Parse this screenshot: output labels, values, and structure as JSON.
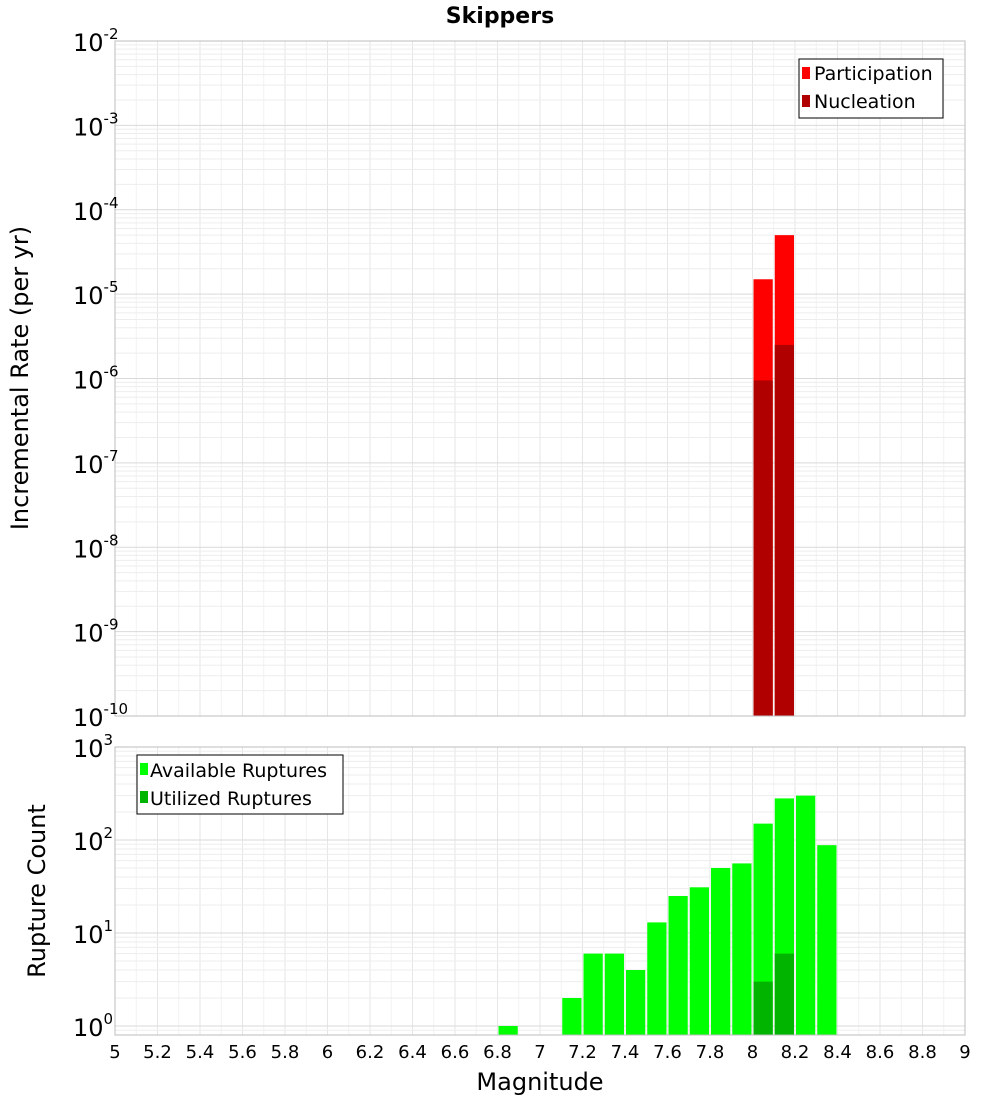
{
  "chart_data": [
    {
      "type": "bar",
      "title": "Skippers",
      "xlabel": "",
      "ylabel": "Incremental Rate (per yr)",
      "yscale": "log",
      "ylim": [
        1e-10,
        0.01
      ],
      "xlim": [
        5,
        9
      ],
      "bin_width": 0.1,
      "grid": true,
      "legend_position": "top-right",
      "x": [
        8.05,
        8.15
      ],
      "series": [
        {
          "name": "Participation",
          "color": "#ff0000",
          "values": [
            1.5e-05,
            5e-05
          ]
        },
        {
          "name": "Nucleation",
          "color": "#b00000",
          "values": [
            9.5e-07,
            2.5e-06
          ]
        }
      ],
      "y_ticks": [
        {
          "base": "10",
          "exp": "-10"
        },
        {
          "base": "10",
          "exp": "-9"
        },
        {
          "base": "10",
          "exp": "-8"
        },
        {
          "base": "10",
          "exp": "-7"
        },
        {
          "base": "10",
          "exp": "-6"
        },
        {
          "base": "10",
          "exp": "-5"
        },
        {
          "base": "10",
          "exp": "-4"
        },
        {
          "base": "10",
          "exp": "-3"
        },
        {
          "base": "10",
          "exp": "-2"
        }
      ]
    },
    {
      "type": "bar",
      "title": "",
      "xlabel": "Magnitude",
      "ylabel": "Rupture Count",
      "yscale": "log",
      "ylim": [
        0.8,
        1000
      ],
      "xlim": [
        5,
        9
      ],
      "bin_width": 0.1,
      "grid": true,
      "legend_position": "top-left",
      "series": [
        {
          "name": "Available Ruptures",
          "color": "#00ff00",
          "x": [
            6.85,
            7.15,
            7.25,
            7.35,
            7.45,
            7.55,
            7.65,
            7.75,
            7.85,
            7.95,
            8.05,
            8.15,
            8.25,
            8.35
          ],
          "values": [
            1,
            2,
            6,
            6,
            4,
            13,
            25,
            31,
            50,
            56,
            150,
            280,
            300,
            88
          ]
        },
        {
          "name": "Utilized Ruptures",
          "color": "#00b400",
          "x": [
            8.05,
            8.15
          ],
          "values": [
            3,
            6
          ]
        }
      ],
      "y_ticks": [
        {
          "base": "10",
          "exp": "0"
        },
        {
          "base": "10",
          "exp": "1"
        },
        {
          "base": "10",
          "exp": "2"
        },
        {
          "base": "10",
          "exp": "3"
        }
      ],
      "x_tick_labels": [
        "5",
        "5.2",
        "5.4",
        "5.6",
        "5.8",
        "6",
        "6.2",
        "6.4",
        "6.6",
        "6.8",
        "7",
        "7.2",
        "7.4",
        "7.6",
        "7.8",
        "8",
        "8.2",
        "8.4",
        "8.6",
        "8.8",
        "9"
      ]
    }
  ]
}
